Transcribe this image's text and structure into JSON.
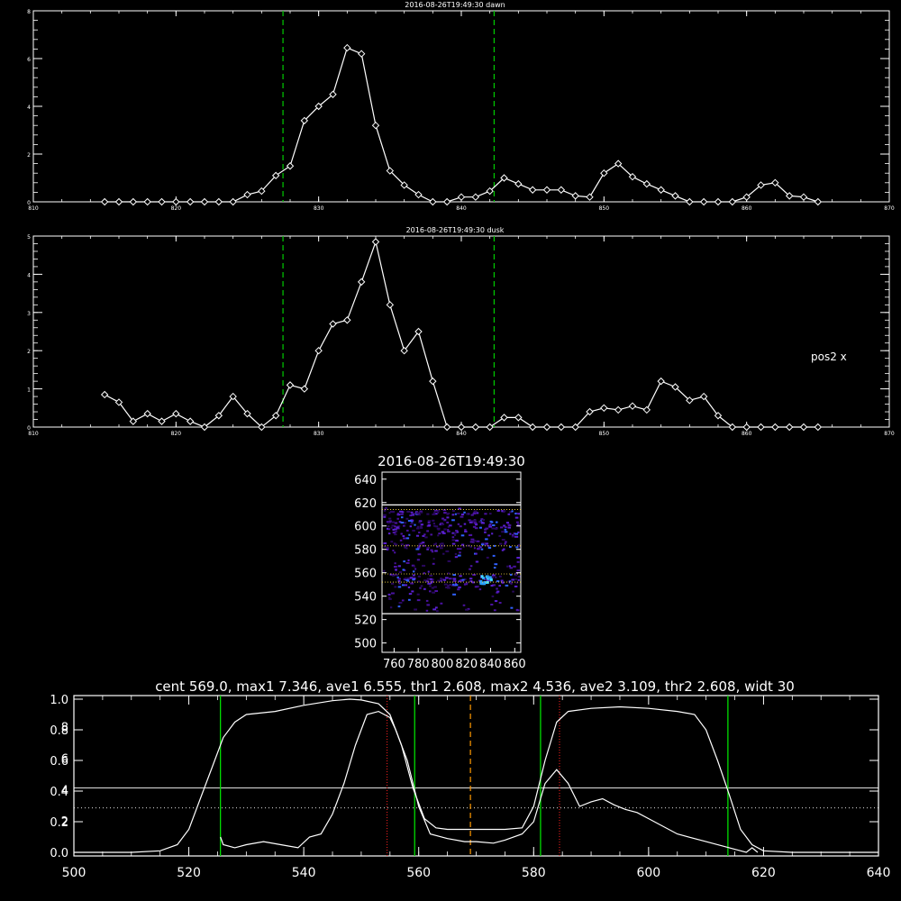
{
  "chart_data": [
    {
      "type": "line",
      "title": "2016-08-26T19:49:30 dawn",
      "xlim": [
        810,
        870
      ],
      "ylim": [
        0,
        8
      ],
      "x_ticks": [
        810,
        820,
        830,
        840,
        850,
        860,
        870
      ],
      "y_ticks": [
        0,
        2,
        4,
        6,
        8
      ],
      "vlines": [
        827.5,
        842.3
      ],
      "x": [
        815,
        816,
        817,
        818,
        819,
        820,
        821,
        822,
        823,
        824,
        825,
        826,
        827,
        828,
        829,
        830,
        831,
        832,
        833,
        834,
        835,
        836,
        837,
        838,
        839,
        840,
        841,
        842,
        843,
        844,
        845,
        846,
        847,
        848,
        849,
        850,
        851,
        852,
        853,
        854,
        855,
        856,
        857,
        858,
        859,
        860,
        861,
        862,
        863,
        864,
        865
      ],
      "values": [
        0,
        0,
        0,
        0,
        0,
        0,
        0,
        0,
        0,
        0,
        0.3,
        0.45,
        1.1,
        1.5,
        3.4,
        4.0,
        4.5,
        6.45,
        6.2,
        3.2,
        1.3,
        0.7,
        0.3,
        0,
        0,
        0.2,
        0.2,
        0.45,
        1.0,
        0.75,
        0.5,
        0.5,
        0.5,
        0.25,
        0.2,
        1.2,
        1.6,
        1.05,
        0.75,
        0.5,
        0.25,
        0,
        0,
        0,
        0,
        0.2,
        0.7,
        0.8,
        0.25,
        0.2,
        0
      ],
      "marker": "diamond"
    },
    {
      "type": "line",
      "title": "2016-08-26T19:49:30 dusk",
      "annotation": "pos2 x",
      "xlim": [
        810,
        870
      ],
      "ylim": [
        0,
        5
      ],
      "x_ticks": [
        810,
        820,
        830,
        840,
        850,
        860,
        870
      ],
      "y_ticks": [
        0,
        1,
        2,
        3,
        4,
        5
      ],
      "vlines": [
        827.5,
        842.3
      ],
      "x": [
        815,
        816,
        817,
        818,
        819,
        820,
        821,
        822,
        823,
        824,
        825,
        826,
        827,
        828,
        829,
        830,
        831,
        832,
        833,
        834,
        835,
        836,
        837,
        838,
        839,
        840,
        841,
        842,
        843,
        844,
        845,
        846,
        847,
        848,
        849,
        850,
        851,
        852,
        853,
        854,
        855,
        856,
        857,
        858,
        859,
        860,
        861,
        862,
        863,
        864,
        865
      ],
      "values": [
        0.85,
        0.65,
        0.15,
        0.35,
        0.15,
        0.35,
        0.15,
        0,
        0.3,
        0.8,
        0.35,
        0,
        0.3,
        1.1,
        1.0,
        2.0,
        2.7,
        2.8,
        3.8,
        4.85,
        3.2,
        2.0,
        2.5,
        1.2,
        0,
        0,
        0,
        0,
        0.25,
        0.25,
        0,
        0,
        0,
        0,
        0.4,
        0.5,
        0.45,
        0.55,
        0.45,
        1.2,
        1.05,
        0.7,
        0.8,
        0.3,
        0,
        0,
        0,
        0,
        0,
        0,
        0
      ],
      "marker": "diamond"
    },
    {
      "type": "heatmap",
      "title": "2016-08-26T19:49:30",
      "xlim": [
        750,
        865
      ],
      "ylim": [
        492,
        646
      ],
      "x_ticks": [
        760,
        780,
        800,
        820,
        840,
        860
      ],
      "y_ticks": [
        500,
        520,
        540,
        560,
        580,
        600,
        620,
        640
      ],
      "solid_hlines": [
        525,
        618
      ],
      "dotted_hlines": [
        552,
        559,
        583,
        614
      ]
    },
    {
      "type": "line",
      "title": "cent 569.0, max1 7.346, ave1 6.555, thr1 2.608, max2 4.536, ave2 3.109, thr2 2.608, widt 30",
      "xlim": [
        500,
        640
      ],
      "ylim": [
        0,
        1
      ],
      "x_ticks": [
        500,
        520,
        540,
        560,
        580,
        600,
        620,
        640
      ],
      "y_ticks_left_outer": [
        "0.0",
        "0.2",
        "0.4",
        "0.6",
        "0.8",
        "1.0"
      ],
      "y_ticks_left_inner": [
        "2",
        "4",
        "6",
        "8"
      ],
      "hline_solid": 0.42,
      "hline_dotted": 0.29,
      "green_vlines": [
        525.5,
        559.3,
        581.2,
        613.8
      ],
      "red_dotted_vlines": [
        554.5,
        584.5
      ],
      "orange_dashed_vline": 569,
      "series": [
        {
          "x": [
            500,
            505,
            510,
            515,
            518,
            520,
            522,
            524,
            526,
            528,
            530,
            535,
            540,
            545,
            548,
            550,
            553,
            555,
            557,
            559,
            561,
            563,
            565,
            568,
            570,
            573,
            575,
            578,
            580,
            582,
            584,
            586,
            590,
            595,
            600,
            605,
            608,
            610,
            612,
            614,
            616,
            618,
            620,
            625,
            630,
            640
          ],
          "values": [
            0,
            0,
            0,
            0.01,
            0.05,
            0.15,
            0.35,
            0.55,
            0.75,
            0.85,
            0.9,
            0.92,
            0.96,
            0.99,
            1.0,
            0.995,
            0.97,
            0.9,
            0.7,
            0.42,
            0.22,
            0.16,
            0.15,
            0.15,
            0.15,
            0.15,
            0.15,
            0.16,
            0.3,
            0.6,
            0.85,
            0.92,
            0.94,
            0.95,
            0.94,
            0.92,
            0.9,
            0.8,
            0.6,
            0.38,
            0.15,
            0.05,
            0.01,
            0,
            0,
            0
          ]
        },
        {
          "x": [
            525.5,
            526,
            528,
            530,
            533,
            536,
            539,
            541,
            543,
            545,
            547,
            549,
            551,
            553,
            555,
            556,
            558,
            560,
            562,
            565,
            568,
            570,
            573,
            575,
            578,
            580,
            582,
            584,
            586,
            588,
            590,
            592,
            594,
            596,
            598,
            600,
            605,
            610,
            615,
            617,
            618,
            619
          ],
          "values": [
            0.1,
            0.05,
            0.03,
            0.05,
            0.07,
            0.05,
            0.03,
            0.1,
            0.12,
            0.25,
            0.45,
            0.7,
            0.9,
            0.92,
            0.88,
            0.8,
            0.6,
            0.3,
            0.12,
            0.09,
            0.07,
            0.07,
            0.06,
            0.08,
            0.12,
            0.2,
            0.45,
            0.54,
            0.45,
            0.3,
            0.33,
            0.35,
            0.31,
            0.28,
            0.26,
            0.22,
            0.12,
            0.07,
            0.02,
            0.0,
            0.03,
            0.0
          ]
        }
      ]
    }
  ]
}
